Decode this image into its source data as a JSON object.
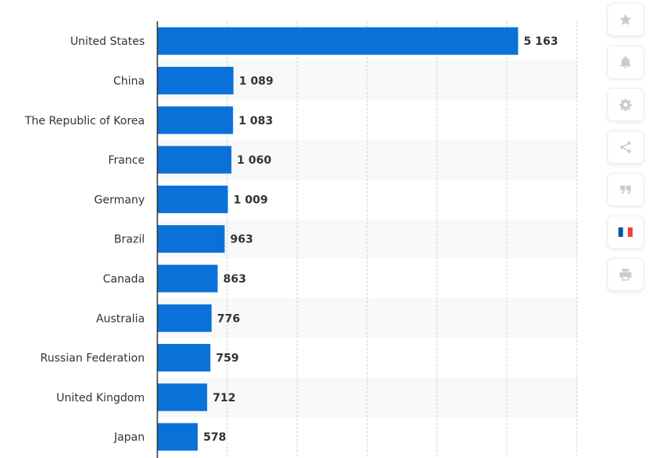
{
  "chart_data": {
    "type": "bar",
    "orientation": "horizontal",
    "categories": [
      "United States",
      "China",
      "The Republic of Korea",
      "France",
      "Germany",
      "Brazil",
      "Canada",
      "Australia",
      "Russian Federation",
      "United Kingdom",
      "Japan"
    ],
    "values": [
      5163,
      1089,
      1083,
      1060,
      1009,
      963,
      863,
      776,
      759,
      712,
      578
    ],
    "value_labels": [
      "5 163",
      "1 089",
      "1 083",
      "1 060",
      "1 009",
      "963",
      "863",
      "776",
      "759",
      "712",
      "578"
    ],
    "xlim": [
      0,
      6000
    ],
    "grid": true,
    "bar_color": "#0a71d9",
    "stripe_color": "#f8f8f8"
  },
  "sidebar": {
    "icons": [
      "star-icon",
      "bell-icon",
      "gear-icon",
      "share-icon",
      "quote-icon",
      "flag-fr-icon",
      "print-icon"
    ],
    "icon_color": "#c7cdd4",
    "flag_colors": [
      "#0055a4",
      "#ffffff",
      "#ef4135"
    ]
  }
}
